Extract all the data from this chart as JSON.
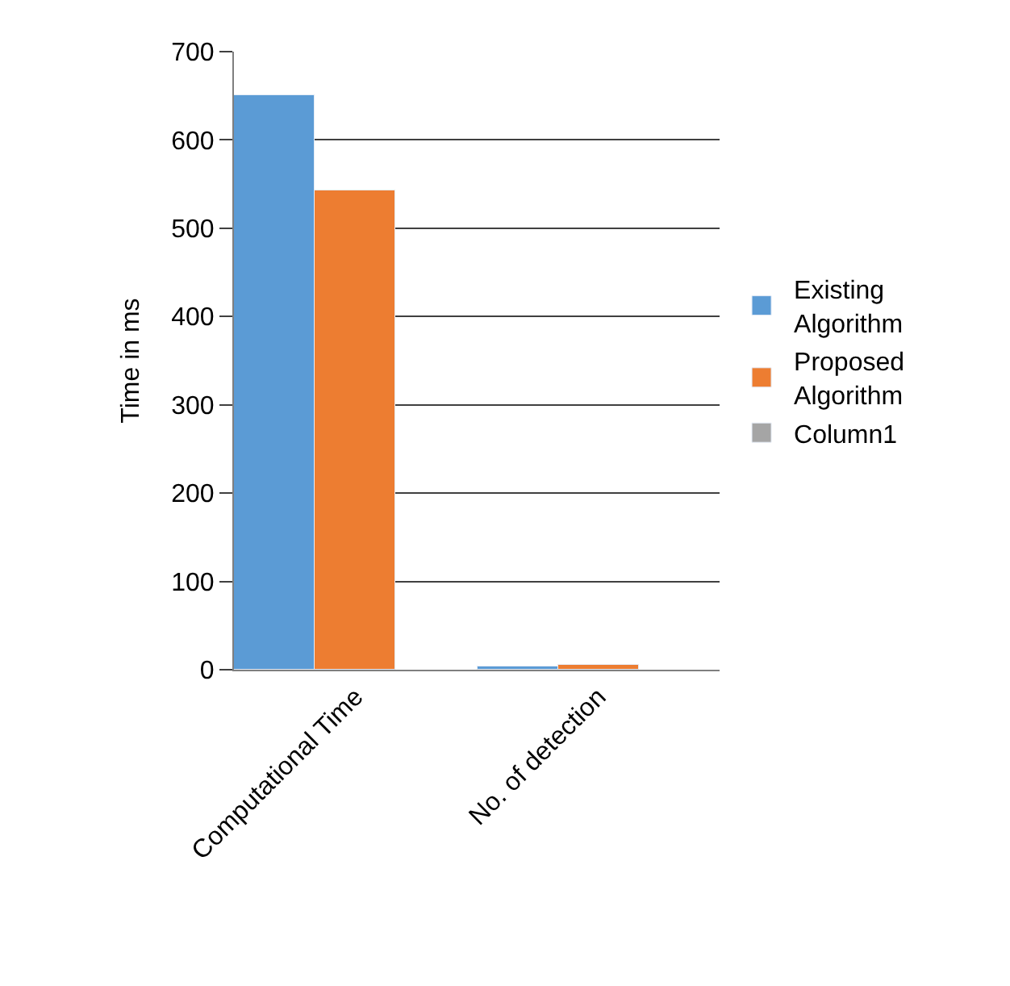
{
  "chart_data": {
    "type": "bar",
    "ylabel": "Time in ms",
    "categories": [
      "Computational Time",
      "No. of detection"
    ],
    "series": [
      {
        "name": "Existing Algorithm",
        "color": "#5b9bd5",
        "values": [
          650,
          4
        ]
      },
      {
        "name": "Proposed Algorithm",
        "color": "#ed7d31",
        "values": [
          542,
          6
        ]
      },
      {
        "name": "Column1",
        "color": "#a5a5a5",
        "values": [
          null,
          null
        ]
      }
    ],
    "ylim": [
      0,
      700
    ],
    "yticks": [
      0,
      100,
      200,
      300,
      400,
      500,
      600,
      700
    ],
    "grid": "y",
    "legend": "right"
  }
}
